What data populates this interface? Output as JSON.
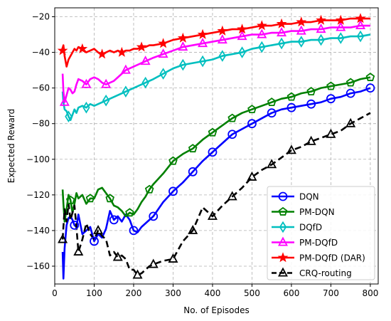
{
  "chart_data": {
    "type": "line",
    "title": "",
    "xlabel": "No. of Episodes",
    "ylabel": "Expected Reward",
    "xlim": [
      0,
      820
    ],
    "ylim": [
      -170,
      -15
    ],
    "xticks": [
      0,
      100,
      200,
      300,
      400,
      500,
      600,
      700,
      800
    ],
    "yticks": [
      -160,
      -140,
      -120,
      -100,
      -80,
      -60,
      -40,
      -20
    ],
    "grid": true,
    "legend_position": "lower-right",
    "series": [
      {
        "name": "DQN",
        "color": "#0000ff",
        "marker": "circle",
        "dashed": false,
        "x": [
          20,
          22,
          25,
          30,
          35,
          40,
          45,
          50,
          55,
          60,
          70,
          80,
          90,
          100,
          110,
          120,
          130,
          140,
          150,
          160,
          170,
          180,
          190,
          200,
          210,
          220,
          230,
          240,
          250,
          275,
          300,
          325,
          350,
          375,
          400,
          425,
          450,
          475,
          500,
          525,
          550,
          575,
          600,
          625,
          650,
          675,
          700,
          725,
          750,
          775,
          800
        ],
        "y": [
          -152,
          -167,
          -150,
          -137,
          -133,
          -132,
          -134,
          -137,
          -138,
          -131,
          -142,
          -140,
          -138,
          -146,
          -142,
          -144,
          -139,
          -129,
          -134,
          -132,
          -135,
          -131,
          -134,
          -140,
          -141,
          -138,
          -136,
          -134,
          -132,
          -124,
          -118,
          -113,
          -107,
          -101,
          -96,
          -91,
          -86,
          -83,
          -80,
          -77,
          -74,
          -72,
          -71,
          -70,
          -69,
          -68,
          -66,
          -65,
          -63,
          -62,
          -60
        ]
      },
      {
        "name": "PM-DQN",
        "color": "#008000",
        "marker": "pentagon",
        "dashed": false,
        "x": [
          20,
          22,
          25,
          30,
          35,
          40,
          45,
          50,
          55,
          60,
          70,
          80,
          90,
          100,
          110,
          120,
          130,
          140,
          150,
          160,
          170,
          180,
          190,
          200,
          210,
          220,
          230,
          240,
          250,
          275,
          300,
          325,
          350,
          375,
          400,
          425,
          450,
          475,
          500,
          525,
          550,
          575,
          600,
          625,
          650,
          675,
          700,
          725,
          750,
          775,
          800
        ],
        "y": [
          -117,
          -125,
          -135,
          -128,
          -120,
          -123,
          -130,
          -125,
          -119,
          -122,
          -120,
          -125,
          -122,
          -122,
          -117,
          -116,
          -119,
          -122,
          -126,
          -127,
          -129,
          -132,
          -130,
          -131,
          -128,
          -124,
          -121,
          -117,
          -114,
          -108,
          -101,
          -97,
          -94,
          -89,
          -85,
          -81,
          -77,
          -74,
          -72,
          -70,
          -68,
          -66,
          -65,
          -63,
          -62,
          -60,
          -59,
          -58,
          -57,
          -55,
          -54
        ]
      },
      {
        "name": "DQfD",
        "color": "#00bfbf",
        "marker": "diamond",
        "dashed": false,
        "x": [
          20,
          22,
          25,
          30,
          35,
          40,
          45,
          50,
          55,
          60,
          70,
          80,
          90,
          100,
          110,
          120,
          130,
          140,
          150,
          160,
          170,
          180,
          190,
          200,
          210,
          220,
          230,
          240,
          250,
          275,
          300,
          325,
          350,
          375,
          400,
          425,
          450,
          475,
          500,
          525,
          550,
          575,
          600,
          625,
          650,
          675,
          700,
          725,
          750,
          775,
          800
        ],
        "y": [
          -62,
          -68,
          -72,
          -73,
          -76,
          -78,
          -75,
          -72,
          -74,
          -71,
          -70,
          -71,
          -69,
          -70,
          -69,
          -68,
          -67,
          -66,
          -65,
          -64,
          -63,
          -62,
          -61,
          -60,
          -59,
          -58,
          -57,
          -56,
          -55,
          -52,
          -49,
          -47,
          -46,
          -45,
          -44,
          -42,
          -41,
          -40,
          -38,
          -37,
          -36,
          -35,
          -34,
          -34,
          -33,
          -33,
          -32,
          -32,
          -31,
          -31,
          -30
        ]
      },
      {
        "name": "PM-DQfD",
        "color": "#ff00ff",
        "marker": "triangle",
        "dashed": false,
        "x": [
          20,
          22,
          25,
          30,
          35,
          40,
          45,
          50,
          55,
          60,
          70,
          80,
          90,
          100,
          110,
          120,
          130,
          140,
          150,
          160,
          170,
          180,
          190,
          200,
          210,
          220,
          230,
          240,
          250,
          275,
          300,
          325,
          350,
          375,
          400,
          425,
          450,
          475,
          500,
          525,
          550,
          575,
          600,
          625,
          650,
          675,
          700,
          725,
          750,
          775,
          800
        ],
        "y": [
          -52,
          -62,
          -68,
          -64,
          -60,
          -61,
          -63,
          -62,
          -58,
          -55,
          -56,
          -58,
          -55,
          -54,
          -55,
          -57,
          -58,
          -57,
          -56,
          -54,
          -52,
          -50,
          -49,
          -48,
          -47,
          -46,
          -45,
          -44,
          -43,
          -41,
          -39,
          -37,
          -36,
          -35,
          -34,
          -33,
          -32,
          -31,
          -30,
          -30,
          -29,
          -29,
          -28,
          -28,
          -27,
          -27,
          -26,
          -26,
          -26,
          -25,
          -25
        ]
      },
      {
        "name": "PM-DQfD (DAR)",
        "color": "#ff0000",
        "marker": "star",
        "dashed": false,
        "x": [
          20,
          22,
          25,
          30,
          35,
          40,
          45,
          50,
          55,
          60,
          70,
          80,
          90,
          100,
          110,
          120,
          130,
          140,
          150,
          160,
          170,
          180,
          190,
          200,
          210,
          220,
          230,
          240,
          250,
          275,
          300,
          325,
          350,
          375,
          400,
          425,
          450,
          475,
          500,
          525,
          550,
          575,
          600,
          625,
          650,
          675,
          700,
          725,
          750,
          775,
          800
        ],
        "y": [
          -39,
          -36,
          -42,
          -48,
          -44,
          -42,
          -40,
          -38,
          -39,
          -37,
          -38,
          -40,
          -39,
          -38,
          -40,
          -41,
          -40,
          -39,
          -40,
          -39,
          -40,
          -39,
          -39,
          -38,
          -38,
          -37,
          -37,
          -36,
          -36,
          -35,
          -33,
          -32,
          -31,
          -30,
          -29,
          -28,
          -27,
          -27,
          -26,
          -25,
          -25,
          -24,
          -24,
          -23,
          -23,
          -22,
          -22,
          -22,
          -21,
          -21,
          -21
        ]
      },
      {
        "name": "CRQ-routing",
        "color": "#000000",
        "marker": "triangle-open",
        "dashed": true,
        "x": [
          20,
          22,
          25,
          30,
          35,
          40,
          45,
          50,
          55,
          60,
          70,
          80,
          90,
          100,
          110,
          120,
          130,
          140,
          150,
          160,
          170,
          180,
          190,
          200,
          210,
          220,
          230,
          240,
          250,
          275,
          300,
          325,
          350,
          375,
          400,
          425,
          450,
          475,
          500,
          525,
          550,
          575,
          600,
          625,
          650,
          675,
          700,
          725,
          750,
          775,
          800
        ],
        "y": [
          -145,
          -138,
          -128,
          -135,
          -125,
          -134,
          -130,
          -126,
          -138,
          -152,
          -145,
          -136,
          -142,
          -145,
          -140,
          -143,
          -145,
          -154,
          -152,
          -155,
          -154,
          -156,
          -162,
          -162,
          -165,
          -164,
          -162,
          -160,
          -159,
          -157,
          -156,
          -146,
          -140,
          -127,
          -132,
          -126,
          -121,
          -116,
          -110,
          -106,
          -103,
          -99,
          -95,
          -93,
          -90,
          -88,
          -86,
          -84,
          -80,
          -77,
          -74
        ]
      }
    ]
  }
}
